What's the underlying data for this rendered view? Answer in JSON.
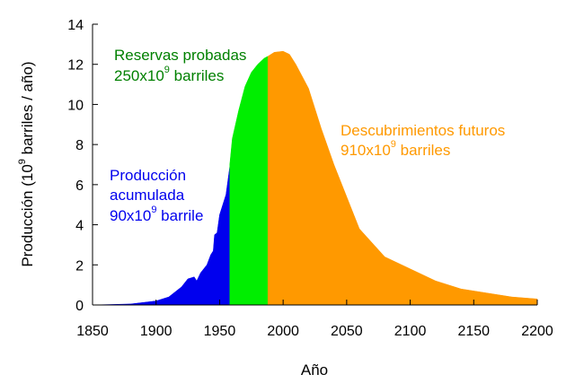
{
  "chart_data": {
    "type": "area",
    "xlabel": "Año",
    "ylabel": {
      "pre": "Producción (10",
      "sup": "9",
      "post": " barriles / año)"
    },
    "xlim": [
      1850,
      2200
    ],
    "xticks": [
      1850,
      1900,
      1950,
      2000,
      2050,
      2100,
      2150,
      2200
    ],
    "ylim": [
      0,
      14
    ],
    "yticks": [
      0,
      2,
      4,
      6,
      8,
      10,
      12,
      14
    ],
    "series": [
      {
        "color": "#0000ee",
        "x": [
          1850,
          1880,
          1900,
          1910,
          1920,
          1925,
          1930,
          1932,
          1935,
          1940,
          1943,
          1945,
          1946,
          1948,
          1950,
          1955,
          1958
        ],
        "values": [
          0,
          0.05,
          0.2,
          0.4,
          0.9,
          1.3,
          1.4,
          1.2,
          1.6,
          2.0,
          2.5,
          2.7,
          3.5,
          3.6,
          4.5,
          5.5,
          6.9
        ]
      },
      {
        "color": "#00ee00",
        "x": [
          1958,
          1960,
          1965,
          1970,
          1975,
          1980,
          1985,
          1988
        ],
        "values": [
          7.0,
          8.3,
          9.7,
          10.9,
          11.6,
          12.0,
          12.3,
          12.4
        ]
      },
      {
        "color": "#ff9900",
        "x": [
          1988,
          1993,
          2000,
          2005,
          2010,
          2020,
          2030,
          2040,
          2045,
          2060,
          2080,
          2100,
          2120,
          2140,
          2160,
          2180,
          2200
        ],
        "values": [
          12.4,
          12.6,
          12.65,
          12.5,
          12.0,
          10.8,
          8.8,
          7.0,
          6.2,
          3.8,
          2.4,
          1.8,
          1.2,
          0.8,
          0.6,
          0.4,
          0.3
        ]
      }
    ],
    "annotations": [
      {
        "lines": [
          "Producción",
          "acumulada"
        ],
        "base": "90x10",
        "sup": "9",
        "unit": " barrile",
        "color": "#0000ee"
      },
      {
        "lines": [
          "Reservas probadas"
        ],
        "base": "250x10",
        "sup": "9",
        "unit": " barriles",
        "color": "#008000"
      },
      {
        "lines": [
          "Descubrimientos futuros"
        ],
        "base": "910x10",
        "sup": "9",
        "unit": " barriles",
        "color": "#ff9900"
      }
    ]
  }
}
